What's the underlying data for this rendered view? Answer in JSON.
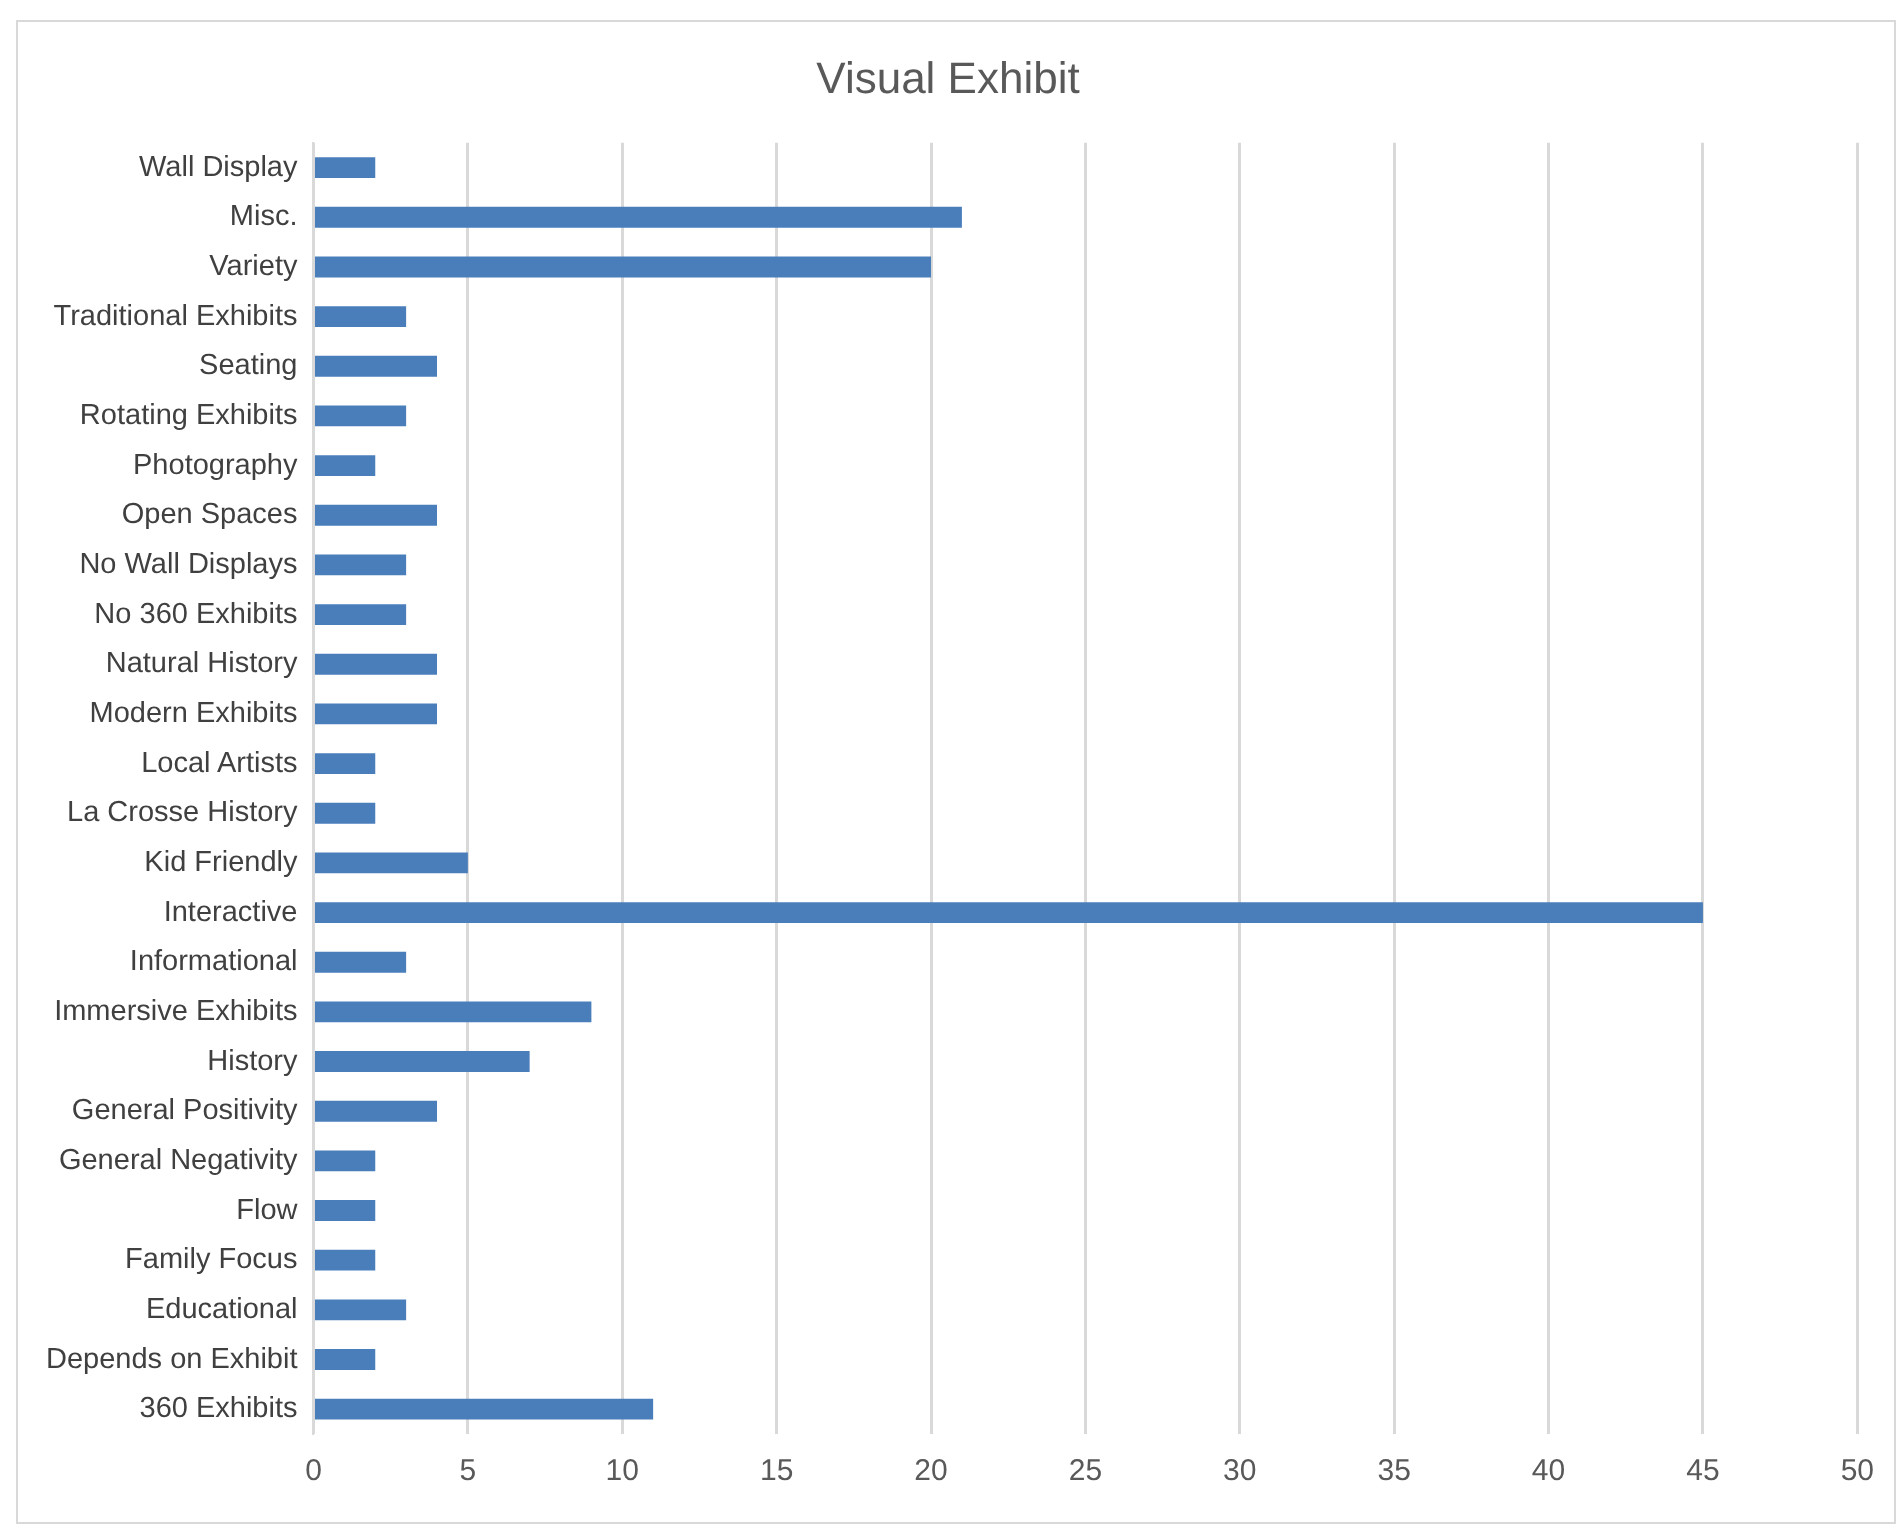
{
  "chart_data": {
    "type": "bar",
    "orientation": "horizontal",
    "title": "Visual Exhibit",
    "categories": [
      "Wall Display",
      "Misc.",
      "Variety",
      "Traditional Exhibits",
      "Seating",
      "Rotating Exhibits",
      "Photography",
      "Open Spaces",
      "No Wall Displays",
      "No 360 Exhibits",
      "Natural History",
      "Modern Exhibits",
      "Local Artists",
      "La Crosse History",
      "Kid Friendly",
      "Interactive",
      "Informational",
      "Immersive Exhibits",
      "History",
      "General Positivity",
      "General Negativity",
      "Flow",
      "Family Focus",
      "Educational",
      "Depends on Exhibit",
      "360 Exhibits"
    ],
    "values": [
      2,
      21,
      20,
      3,
      4,
      3,
      2,
      4,
      3,
      3,
      4,
      4,
      2,
      2,
      5,
      45,
      3,
      9,
      7,
      4,
      2,
      2,
      2,
      3,
      2,
      11
    ],
    "color": "#4a7ebb",
    "xlim": [
      0,
      50
    ],
    "xticks": [
      0,
      5,
      10,
      15,
      20,
      25,
      30,
      35,
      40,
      45,
      50
    ],
    "grid": "x",
    "legend": false
  }
}
